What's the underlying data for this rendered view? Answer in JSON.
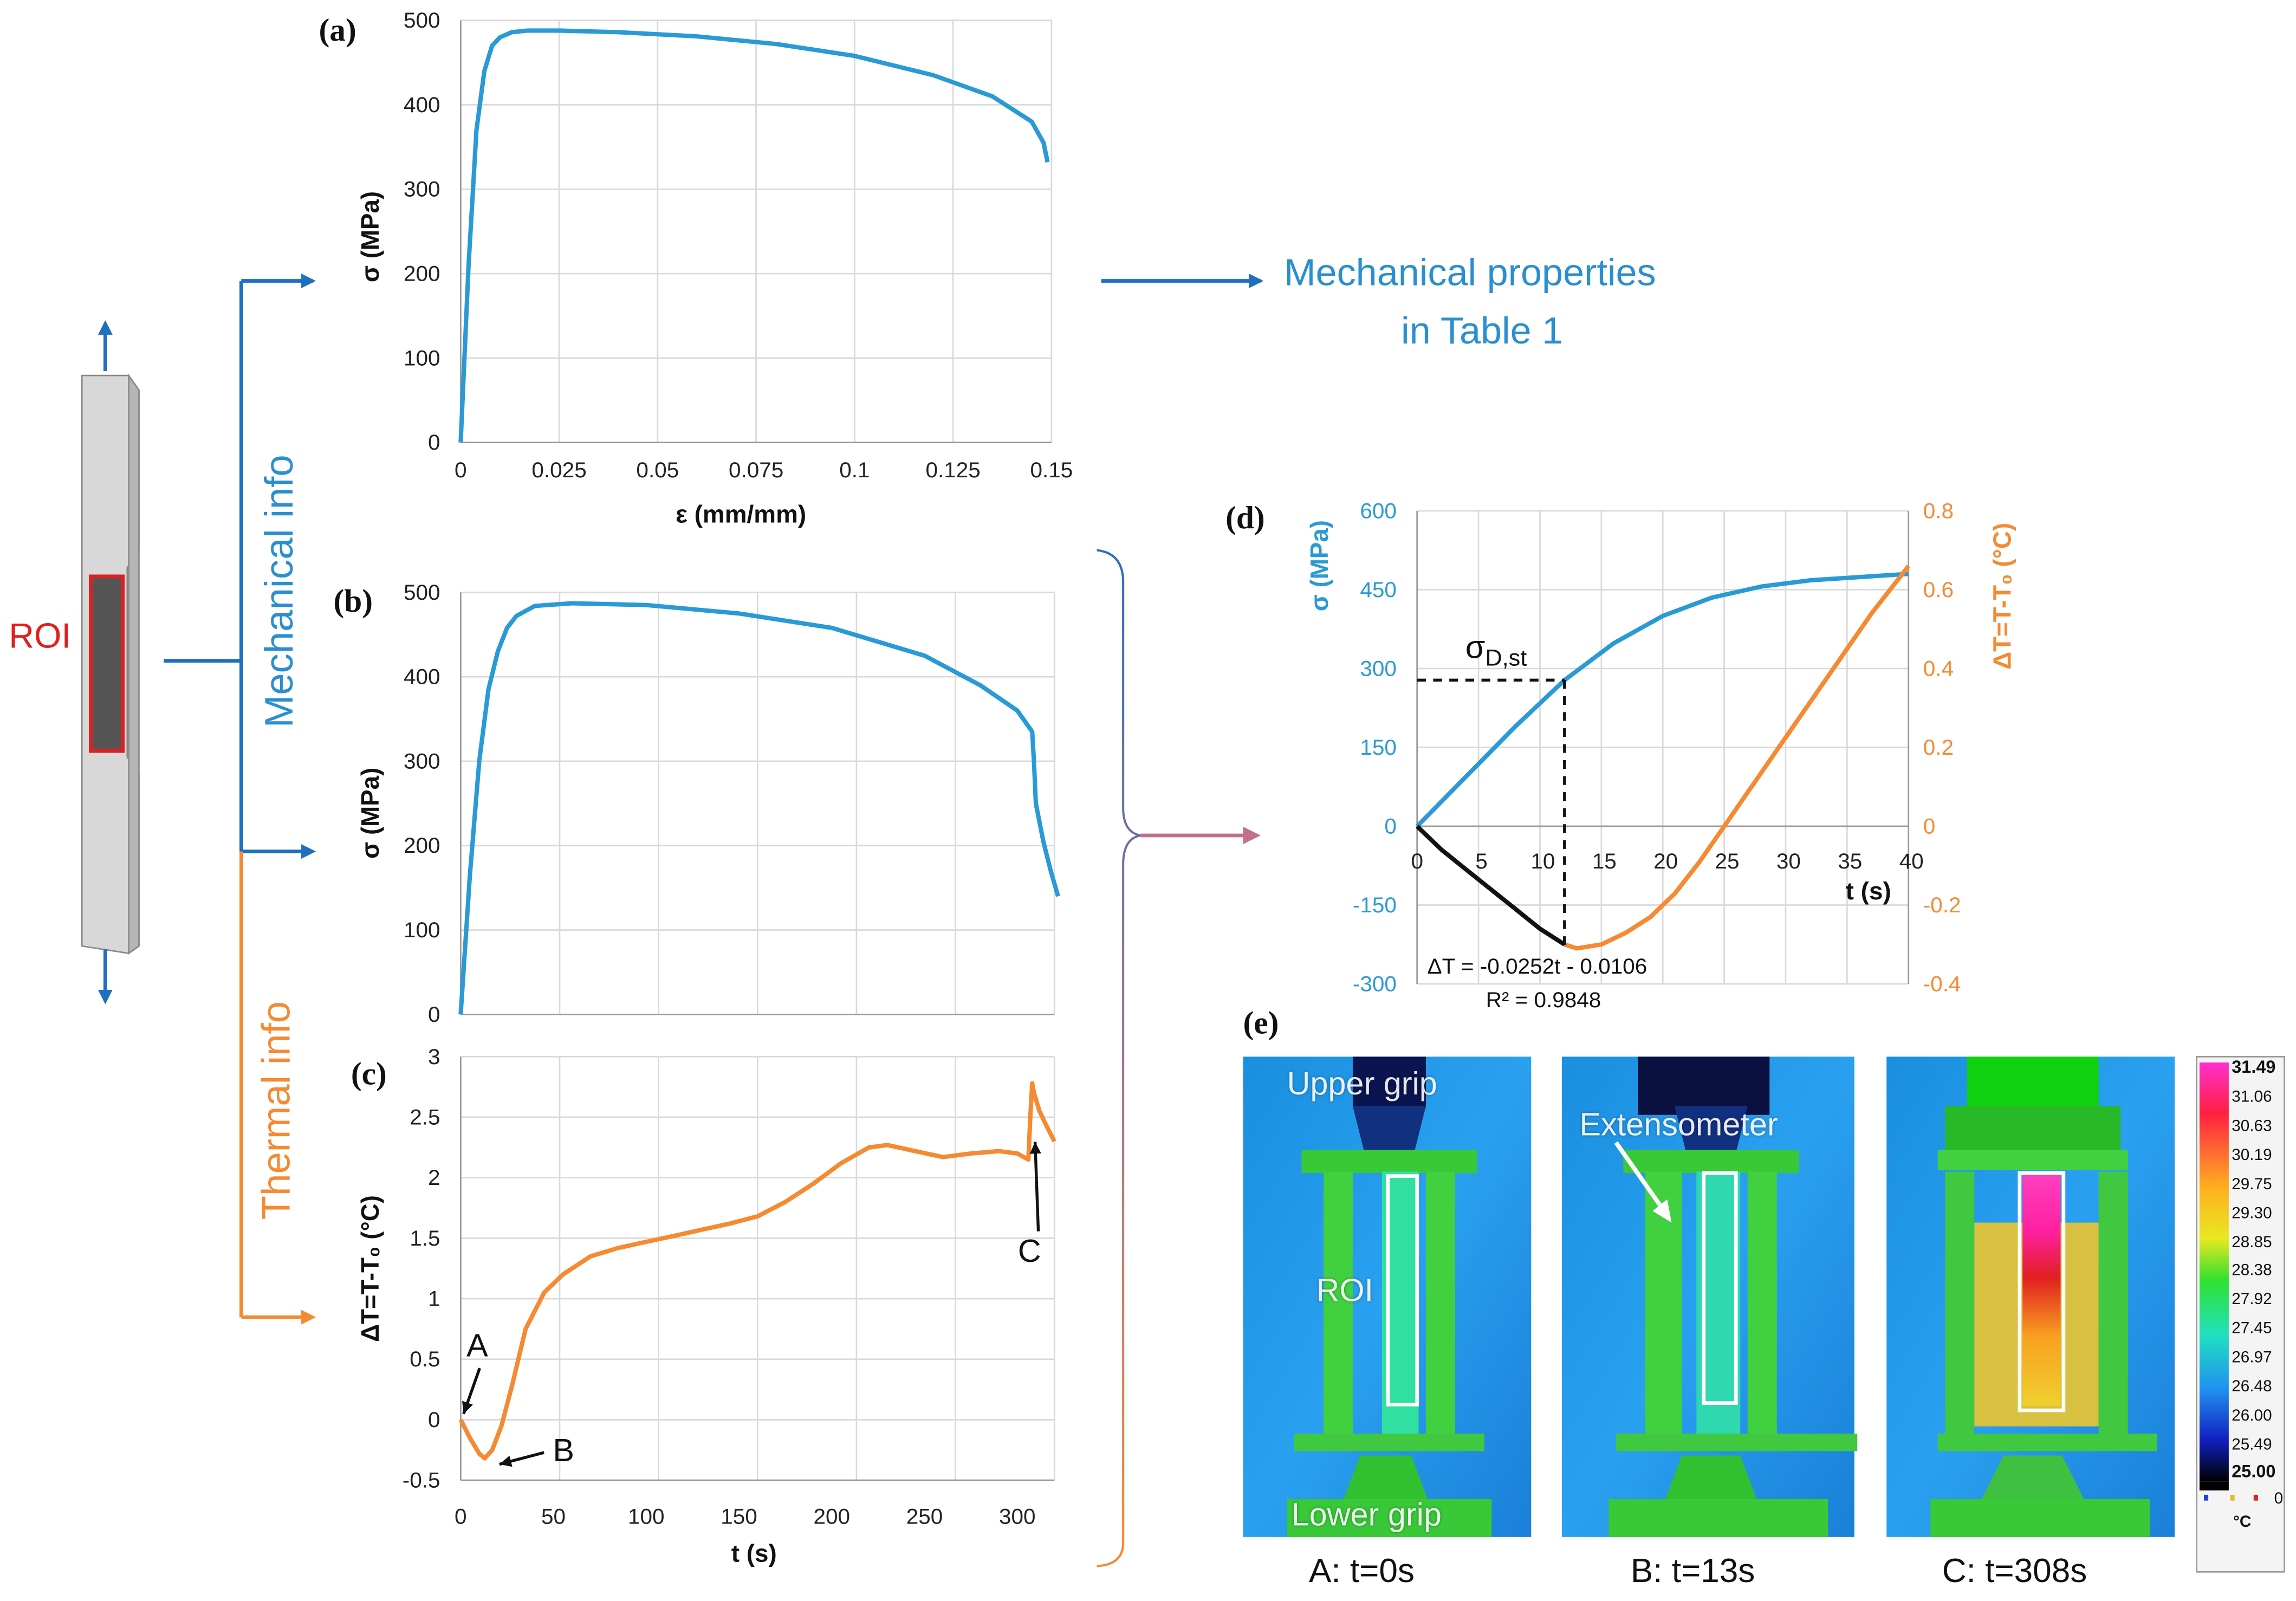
{
  "colors": {
    "blue": "#2a9ad6",
    "orange": "#f58a32",
    "dark_blue": "#1f6fbf",
    "red": "#e02020",
    "black": "#111111"
  },
  "specimen": {
    "roi_label": "ROI"
  },
  "branches": {
    "mechanical": "Mechanical info",
    "thermal": "Thermal info"
  },
  "arrow_text": {
    "line1": "Mechanical properties",
    "line2": "in Table 1"
  },
  "chart_data": [
    {
      "panel": "(a)",
      "type": "line",
      "xlabel": "ε (mm/mm)",
      "ylabel": "σ (MPa)",
      "xlim": [
        0,
        0.15
      ],
      "ylim": [
        0,
        500
      ],
      "xticks": [
        "0",
        "0.025",
        "0.05",
        "0.075",
        "0.1",
        "0.125",
        "0.15"
      ],
      "yticks": [
        "0",
        "100",
        "200",
        "300",
        "400",
        "500"
      ],
      "grid": true,
      "series": [
        {
          "color": "#2a9ad6",
          "x": [
            0,
            0.002,
            0.004,
            0.006,
            0.008,
            0.01,
            0.013,
            0.017,
            0.025,
            0.04,
            0.06,
            0.08,
            0.1,
            0.12,
            0.135,
            0.145,
            0.148,
            0.149
          ],
          "y": [
            0,
            210,
            370,
            440,
            470,
            480,
            486,
            488,
            488,
            486,
            481,
            472,
            458,
            435,
            410,
            380,
            355,
            332
          ]
        }
      ]
    },
    {
      "panel": "(b)",
      "type": "line",
      "xlabel": "",
      "ylabel": "σ (MPa)",
      "xlim": [
        0,
        320
      ],
      "ylim": [
        0,
        500
      ],
      "yticks": [
        "0",
        "100",
        "200",
        "300",
        "400",
        "500"
      ],
      "grid": true,
      "series": [
        {
          "color": "#2a9ad6",
          "x": [
            0,
            5,
            10,
            15,
            20,
            25,
            30,
            40,
            60,
            100,
            150,
            200,
            250,
            280,
            300,
            308,
            309,
            310,
            314,
            318,
            322
          ],
          "y": [
            0,
            165,
            300,
            385,
            430,
            458,
            472,
            484,
            487,
            485,
            475,
            458,
            425,
            390,
            360,
            335,
            300,
            250,
            205,
            170,
            140
          ]
        }
      ]
    },
    {
      "panel": "(c)",
      "type": "line",
      "xlabel": "t (s)",
      "ylabel": "ΔT=T-T₀ (°C)",
      "xlim": [
        0,
        320
      ],
      "ylim": [
        -0.5,
        3
      ],
      "xticks": [
        "0",
        "50",
        "100",
        "150",
        "200",
        "250",
        "300"
      ],
      "yticks": [
        "-0.5",
        "0",
        "0.5",
        "1",
        "1.5",
        "2",
        "2.5",
        "3"
      ],
      "grid": true,
      "annotations": [
        {
          "text": "A",
          "x": 0,
          "y": 0
        },
        {
          "text": "B",
          "x": 13,
          "y": -0.32
        },
        {
          "text": "C",
          "x": 308,
          "y": 2.2
        }
      ],
      "series": [
        {
          "color": "#f58a32",
          "x": [
            0,
            5,
            10,
            13,
            17,
            22,
            28,
            35,
            45,
            55,
            70,
            85,
            100,
            115,
            130,
            145,
            160,
            175,
            190,
            205,
            220,
            230,
            245,
            260,
            275,
            290,
            300,
            306,
            307,
            308,
            309,
            312,
            316,
            320
          ],
          "y": [
            0,
            -0.15,
            -0.28,
            -0.32,
            -0.25,
            -0.05,
            0.3,
            0.75,
            1.05,
            1.2,
            1.35,
            1.42,
            1.47,
            1.52,
            1.57,
            1.62,
            1.68,
            1.8,
            1.95,
            2.12,
            2.25,
            2.27,
            2.22,
            2.17,
            2.2,
            2.22,
            2.2,
            2.15,
            2.5,
            2.78,
            2.7,
            2.55,
            2.42,
            2.3
          ]
        }
      ]
    },
    {
      "panel": "(d)",
      "type": "line",
      "xlabel": "t (s)",
      "ylabel": "σ (MPa)",
      "y2label": "ΔT=T-T₀ (°C)",
      "xlim": [
        0,
        40
      ],
      "ylim": [
        -300,
        600
      ],
      "y2lim": [
        -0.4,
        0.8
      ],
      "xticks": [
        "0",
        "5",
        "10",
        "15",
        "20",
        "25",
        "30",
        "35",
        "40"
      ],
      "yticks": [
        "-300",
        "-150",
        "0",
        "150",
        "300",
        "450",
        "600"
      ],
      "y2ticks": [
        "-0.4",
        "-0.2",
        "0",
        "0.2",
        "0.4",
        "0.6",
        "0.8"
      ],
      "grid": true,
      "marker_label": "σ",
      "marker_sub": "D,st",
      "equation": "ΔT = -0.0252t - 0.0106",
      "r2": "R² = 0.9848",
      "series": [
        {
          "axis": "left",
          "color": "#2a9ad6",
          "x": [
            0,
            4,
            8,
            12,
            16,
            20,
            24,
            28,
            32,
            36,
            40
          ],
          "y": [
            0,
            95,
            190,
            278,
            348,
            400,
            435,
            456,
            468,
            474,
            480
          ]
        },
        {
          "axis": "right",
          "color": "#111111",
          "x": [
            0,
            2,
            4,
            6,
            8,
            10,
            12
          ],
          "y": [
            0,
            -0.06,
            -0.11,
            -0.16,
            -0.21,
            -0.26,
            -0.3
          ]
        },
        {
          "axis": "right",
          "color": "#f58a32",
          "x": [
            12,
            13,
            15,
            17,
            19,
            21,
            23,
            25,
            27,
            29,
            31,
            33,
            35,
            37,
            39,
            40
          ],
          "y": [
            -0.3,
            -0.31,
            -0.3,
            -0.27,
            -0.23,
            -0.17,
            -0.09,
            0.0,
            0.09,
            0.18,
            0.27,
            0.36,
            0.45,
            0.54,
            0.62,
            0.66
          ]
        }
      ]
    }
  ],
  "thermal_images": {
    "panel": "(e)",
    "frames": [
      {
        "caption": "A: t=0s",
        "labels": [
          "Upper grip",
          "ROI",
          "Lower grip"
        ]
      },
      {
        "caption": "B: t=13s",
        "labels": [
          "Extensometer"
        ]
      },
      {
        "caption": "C: t=308s",
        "labels": []
      }
    ],
    "colorbar": {
      "max": "31.49",
      "ticks": [
        "31.06",
        "30.63",
        "30.19",
        "29.75",
        "29.30",
        "28.85",
        "28.38",
        "27.92",
        "27.45",
        "26.97",
        "26.48",
        "26.00",
        "25.49"
      ],
      "min": "25.00",
      "unit": "°C"
    }
  }
}
